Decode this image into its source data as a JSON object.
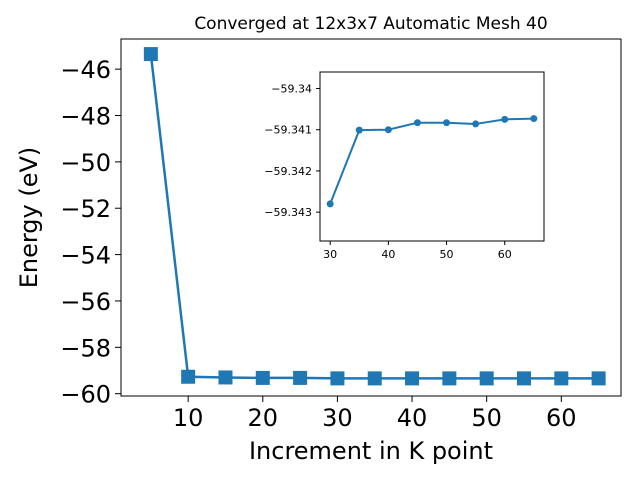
{
  "chart_data": [
    {
      "type": "line",
      "title": "Converged at 12x3x7 Automatic Mesh 40",
      "xlabel": "Increment in K point",
      "ylabel": "Energy (eV)",
      "xlim": [
        1,
        68
      ],
      "ylim": [
        -60.1,
        -44.7
      ],
      "xticks": [
        10,
        20,
        30,
        40,
        50,
        60
      ],
      "yticks": [
        -46,
        -48,
        -50,
        -52,
        -54,
        -56,
        -58,
        -60
      ],
      "grid": false,
      "marker": "square",
      "color": "#1f77b4",
      "x": [
        5,
        10,
        15,
        20,
        25,
        30,
        35,
        40,
        45,
        50,
        55,
        60,
        65
      ],
      "y": [
        -45.35,
        -59.27,
        -59.3,
        -59.32,
        -59.32,
        -59.34,
        -59.34,
        -59.34,
        -59.34,
        -59.34,
        -59.34,
        -59.34,
        -59.34
      ]
    },
    {
      "type": "line",
      "title": "",
      "xlabel": "",
      "ylabel": "",
      "xlim": [
        28.25,
        66.75
      ],
      "ylim": [
        -59.3437,
        -59.3396
      ],
      "xticks": [
        30,
        40,
        50,
        60
      ],
      "yticks": [
        -59.343,
        -59.342,
        -59.341,
        -59.34
      ],
      "grid": false,
      "marker": "circle",
      "color": "#1f77b4",
      "x": [
        30,
        35,
        40,
        45,
        50,
        55,
        60,
        65
      ],
      "y": [
        -59.3428,
        -59.34101,
        -59.341,
        -59.34083,
        -59.34083,
        -59.34086,
        -59.34075,
        -59.34073
      ]
    }
  ]
}
